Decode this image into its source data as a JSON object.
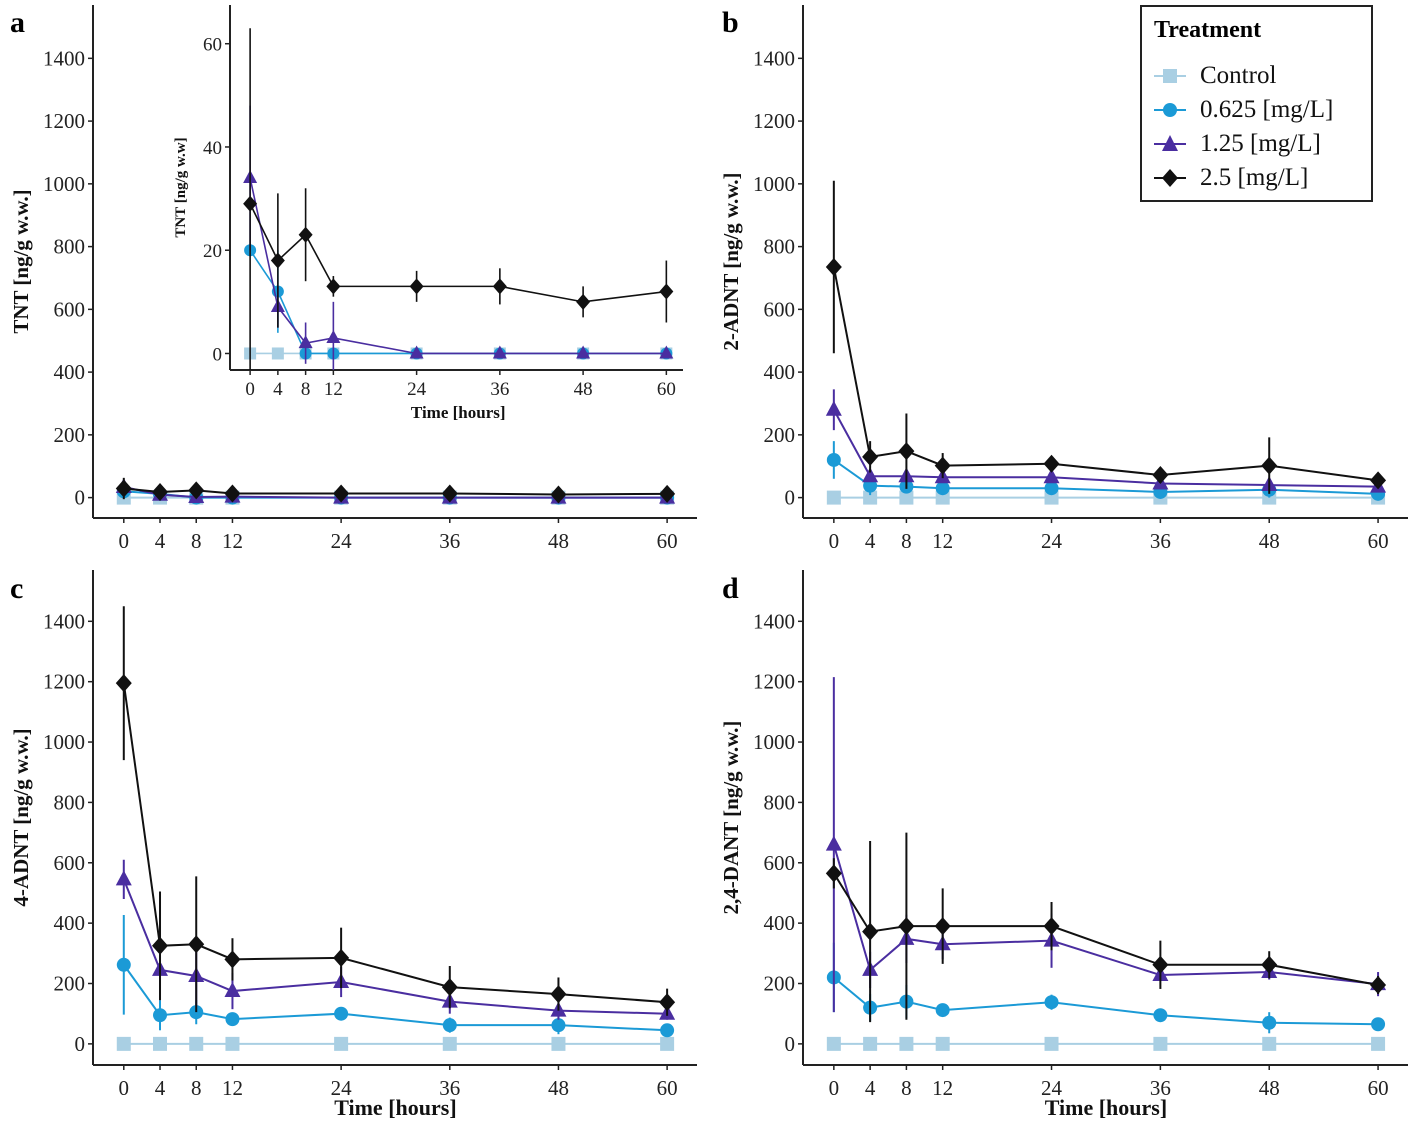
{
  "legend": {
    "title": "Treatment",
    "items": [
      {
        "label": "Control",
        "color": "#a9cfe3",
        "marker": "square"
      },
      {
        "label": "0.625 [mg/L]",
        "color": "#1b9ad6",
        "marker": "circle"
      },
      {
        "label": "1.25 [mg/L]",
        "color": "#4a2ea0",
        "marker": "triangle"
      },
      {
        "label": "2.5 [mg/L]",
        "color": "#111111",
        "marker": "diamond"
      }
    ]
  },
  "chart_data": [
    {
      "panel": "a",
      "type": "line",
      "ylabel": "TNT [ng/g w.w.]",
      "xlabel": "",
      "x": [
        0,
        4,
        8,
        12,
        24,
        36,
        48,
        60
      ],
      "xticks": [
        0,
        4,
        8,
        12,
        24,
        36,
        48,
        60
      ],
      "yticks": [
        0,
        200,
        400,
        600,
        800,
        1000,
        1200,
        1400
      ],
      "ylim": [
        -65,
        1570
      ],
      "xlim": [
        -3.4,
        63.3
      ],
      "series": [
        {
          "name": "Control",
          "values": [
            0,
            0,
            0,
            0,
            0,
            0,
            0,
            0
          ],
          "err": [
            0,
            0,
            0,
            0,
            0,
            0,
            0,
            0
          ]
        },
        {
          "name": "0.625 [mg/L]",
          "values": [
            20,
            12,
            0,
            0,
            0,
            0,
            0,
            0
          ],
          "err": [
            0,
            8,
            0,
            0,
            0,
            0,
            0,
            0
          ]
        },
        {
          "name": "1.25 [mg/L]",
          "values": [
            34,
            9,
            2,
            3,
            0,
            0,
            0,
            0
          ],
          "err": [
            14,
            4,
            4,
            7,
            0,
            0,
            0,
            0
          ]
        },
        {
          "name": "2.5 [mg/L]",
          "values": [
            29,
            18,
            23,
            13,
            13,
            13,
            10,
            12
          ],
          "err": [
            34,
            13,
            9,
            2,
            3,
            3.5,
            3,
            6
          ]
        }
      ]
    },
    {
      "panel": "a-inset",
      "type": "line",
      "ylabel": "TNT [ng/g w.w]",
      "xlabel": "Time [hours]",
      "x": [
        0,
        4,
        8,
        12,
        24,
        36,
        48,
        60
      ],
      "xticks": [
        0,
        4,
        8,
        12,
        24,
        36,
        48,
        60
      ],
      "yticks": [
        0,
        20,
        40,
        60
      ],
      "ylim": [
        -3.2,
        67.5
      ],
      "xlim": [
        -2.9,
        62.4
      ],
      "series": [
        {
          "name": "Control",
          "values": [
            0,
            0,
            0,
            0,
            0,
            0,
            0,
            0
          ],
          "err": [
            0,
            0,
            0,
            0,
            0,
            0,
            0,
            0
          ]
        },
        {
          "name": "0.625 [mg/L]",
          "values": [
            20,
            12,
            0,
            0,
            0,
            0,
            0,
            0
          ],
          "err": [
            0,
            8,
            0,
            0,
            0,
            0,
            0,
            0
          ]
        },
        {
          "name": "1.25 [mg/L]",
          "values": [
            34,
            9,
            2,
            3,
            0,
            0,
            0,
            0
          ],
          "err": [
            14,
            4,
            4,
            7,
            0,
            0,
            0,
            0
          ]
        },
        {
          "name": "2.5 [mg/L]",
          "values": [
            29,
            18,
            23,
            13,
            13,
            13,
            10,
            12
          ],
          "err": [
            34,
            13,
            9,
            2,
            3,
            3.5,
            3,
            6
          ]
        }
      ]
    },
    {
      "panel": "b",
      "type": "line",
      "ylabel": "2-ADNT [ng/g w.w.]",
      "xlabel": "",
      "x": [
        0,
        4,
        8,
        12,
        24,
        36,
        48,
        60
      ],
      "xticks": [
        0,
        4,
        8,
        12,
        24,
        36,
        48,
        60
      ],
      "yticks": [
        0,
        200,
        400,
        600,
        800,
        1000,
        1200,
        1400
      ],
      "ylim": [
        -65,
        1570
      ],
      "xlim": [
        -3.4,
        63.3
      ],
      "series": [
        {
          "name": "Control",
          "values": [
            0,
            0,
            0,
            0,
            0,
            0,
            0,
            0
          ],
          "err": [
            0,
            0,
            0,
            0,
            0,
            0,
            0,
            0
          ]
        },
        {
          "name": "0.625 [mg/L]",
          "values": [
            120,
            38,
            35,
            30,
            30,
            18,
            25,
            12
          ],
          "err": [
            60,
            30,
            15,
            8,
            8,
            8,
            25,
            8
          ]
        },
        {
          "name": "1.25 [mg/L]",
          "values": [
            280,
            68,
            68,
            65,
            65,
            45,
            40,
            35
          ],
          "err": [
            65,
            15,
            20,
            10,
            10,
            5,
            10,
            5
          ]
        },
        {
          "name": "2.5 [mg/L]",
          "values": [
            735,
            130,
            148,
            102,
            108,
            72,
            102,
            55
          ],
          "err": [
            275,
            50,
            120,
            40,
            10,
            10,
            90,
            10
          ]
        }
      ]
    },
    {
      "panel": "c",
      "type": "line",
      "ylabel": "4-ADNT [ng/g w.w.]",
      "xlabel": "Time [hours]",
      "x": [
        0,
        4,
        8,
        12,
        24,
        36,
        48,
        60
      ],
      "xticks": [
        0,
        4,
        8,
        12,
        24,
        36,
        48,
        60
      ],
      "yticks": [
        0,
        200,
        400,
        600,
        800,
        1000,
        1200,
        1400
      ],
      "ylim": [
        -70,
        1570
      ],
      "xlim": [
        -3.4,
        63.3
      ],
      "series": [
        {
          "name": "Control",
          "values": [
            0,
            0,
            0,
            0,
            0,
            0,
            0,
            0
          ],
          "err": [
            0,
            0,
            0,
            0,
            0,
            0,
            0,
            0
          ]
        },
        {
          "name": "0.625 [mg/L]",
          "values": [
            262,
            95,
            105,
            82,
            100,
            62,
            62,
            45
          ],
          "err": [
            165,
            50,
            40,
            15,
            15,
            25,
            30,
            15
          ]
        },
        {
          "name": "1.25 [mg/L]",
          "values": [
            545,
            245,
            225,
            175,
            205,
            140,
            110,
            100
          ],
          "err": [
            65,
            100,
            100,
            60,
            50,
            40,
            30,
            20
          ]
        },
        {
          "name": "2.5 [mg/L]",
          "values": [
            1195,
            325,
            330,
            280,
            285,
            188,
            165,
            138
          ],
          "err": [
            255,
            180,
            225,
            70,
            100,
            70,
            55,
            45
          ]
        }
      ]
    },
    {
      "panel": "d",
      "type": "line",
      "ylabel": "2,4-DANT [ng/g w.w.]",
      "xlabel": "Time [hours]",
      "x": [
        0,
        4,
        8,
        12,
        24,
        36,
        48,
        60
      ],
      "xticks": [
        0,
        4,
        8,
        12,
        24,
        36,
        48,
        60
      ],
      "yticks": [
        0,
        200,
        400,
        600,
        800,
        1000,
        1200,
        1400
      ],
      "ylim": [
        -70,
        1570
      ],
      "xlim": [
        -3.4,
        63.3
      ],
      "series": [
        {
          "name": "Control",
          "values": [
            0,
            0,
            0,
            0,
            0,
            0,
            0,
            0
          ],
          "err": [
            0,
            0,
            0,
            0,
            0,
            0,
            0,
            0
          ]
        },
        {
          "name": "0.625 [mg/L]",
          "values": [
            220,
            120,
            140,
            112,
            138,
            95,
            70,
            65
          ],
          "err": [
            115,
            45,
            55,
            20,
            25,
            20,
            35,
            10
          ]
        },
        {
          "name": "1.25 [mg/L]",
          "values": [
            660,
            245,
            348,
            330,
            342,
            228,
            238,
            198
          ],
          "err": [
            555,
            60,
            80,
            50,
            90,
            20,
            25,
            40
          ]
        },
        {
          "name": "2.5 [mg/L]",
          "values": [
            565,
            372,
            390,
            390,
            390,
            262,
            262,
            195
          ],
          "err": [
            50,
            300,
            310,
            125,
            80,
            80,
            45,
            30
          ]
        }
      ]
    }
  ]
}
